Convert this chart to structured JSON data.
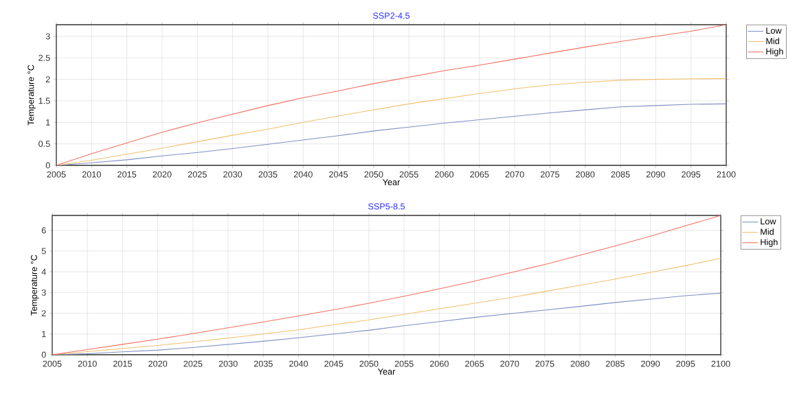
{
  "chart_data": [
    {
      "type": "line",
      "title": "SSP2-4.5",
      "xlabel": "Year",
      "ylabel": "Temperature °C",
      "x": [
        2005,
        2010,
        2015,
        2020,
        2025,
        2030,
        2035,
        2040,
        2045,
        2050,
        2055,
        2060,
        2065,
        2070,
        2075,
        2080,
        2085,
        2090,
        2095,
        2100
      ],
      "series": [
        {
          "name": "Low",
          "color": "#7f8fc4",
          "values": [
            0,
            0.06,
            0.13,
            0.22,
            0.3,
            0.39,
            0.49,
            0.59,
            0.69,
            0.8,
            0.89,
            0.98,
            1.06,
            1.14,
            1.22,
            1.29,
            1.36,
            1.39,
            1.42,
            1.43
          ]
        },
        {
          "name": "Mid",
          "color": "#f0c070",
          "values": [
            0,
            0.12,
            0.26,
            0.4,
            0.55,
            0.7,
            0.84,
            1.0,
            1.15,
            1.29,
            1.43,
            1.55,
            1.67,
            1.78,
            1.87,
            1.93,
            1.98,
            2.0,
            2.01,
            2.02
          ]
        },
        {
          "name": "High",
          "color": "#f07060",
          "values": [
            0,
            0.27,
            0.52,
            0.77,
            0.99,
            1.19,
            1.39,
            1.57,
            1.73,
            1.9,
            2.05,
            2.2,
            2.33,
            2.47,
            2.61,
            2.75,
            2.88,
            3.0,
            3.12,
            3.27
          ]
        }
      ],
      "xlim": [
        2005,
        2100
      ],
      "ylim": [
        0,
        3.27
      ],
      "xticks": [
        2005,
        2010,
        2015,
        2020,
        2025,
        2030,
        2035,
        2040,
        2045,
        2050,
        2055,
        2060,
        2065,
        2070,
        2075,
        2080,
        2085,
        2090,
        2095,
        2100
      ],
      "yticks": [
        0,
        0.5,
        1,
        1.5,
        2,
        2.5,
        3
      ],
      "grid": true,
      "legend": "top right",
      "marker": "none",
      "line_style": "solid"
    },
    {
      "type": "line",
      "title": "SSP5-8.5",
      "xlabel": "Year",
      "ylabel": "Temperature °C",
      "x": [
        2005,
        2010,
        2015,
        2020,
        2025,
        2030,
        2035,
        2040,
        2045,
        2050,
        2055,
        2060,
        2065,
        2070,
        2075,
        2080,
        2085,
        2090,
        2095,
        2100
      ],
      "series": [
        {
          "name": "Low",
          "color": "#7f8fc4",
          "values": [
            0,
            0.05,
            0.14,
            0.22,
            0.35,
            0.5,
            0.65,
            0.82,
            1.0,
            1.18,
            1.4,
            1.6,
            1.8,
            1.98,
            2.15,
            2.33,
            2.52,
            2.68,
            2.85,
            2.97
          ]
        },
        {
          "name": "Mid",
          "color": "#f0c070",
          "values": [
            0,
            0.15,
            0.3,
            0.45,
            0.62,
            0.8,
            1.0,
            1.2,
            1.45,
            1.68,
            1.95,
            2.22,
            2.48,
            2.75,
            3.05,
            3.35,
            3.65,
            3.97,
            4.3,
            4.65
          ]
        },
        {
          "name": "High",
          "color": "#f07060",
          "values": [
            0,
            0.25,
            0.5,
            0.75,
            1.02,
            1.3,
            1.58,
            1.87,
            2.17,
            2.48,
            2.82,
            3.18,
            3.55,
            3.95,
            4.35,
            4.8,
            5.25,
            5.72,
            6.22,
            6.72
          ]
        }
      ],
      "xlim": [
        2005,
        2100
      ],
      "ylim": [
        0,
        6.72
      ],
      "xticks": [
        2005,
        2010,
        2015,
        2020,
        2025,
        2030,
        2035,
        2040,
        2045,
        2050,
        2055,
        2060,
        2065,
        2070,
        2075,
        2080,
        2085,
        2090,
        2095,
        2100
      ],
      "yticks": [
        0,
        1,
        2,
        3,
        4,
        5,
        6
      ],
      "grid": true,
      "legend": "top right",
      "marker": "none",
      "line_style": "solid"
    }
  ]
}
